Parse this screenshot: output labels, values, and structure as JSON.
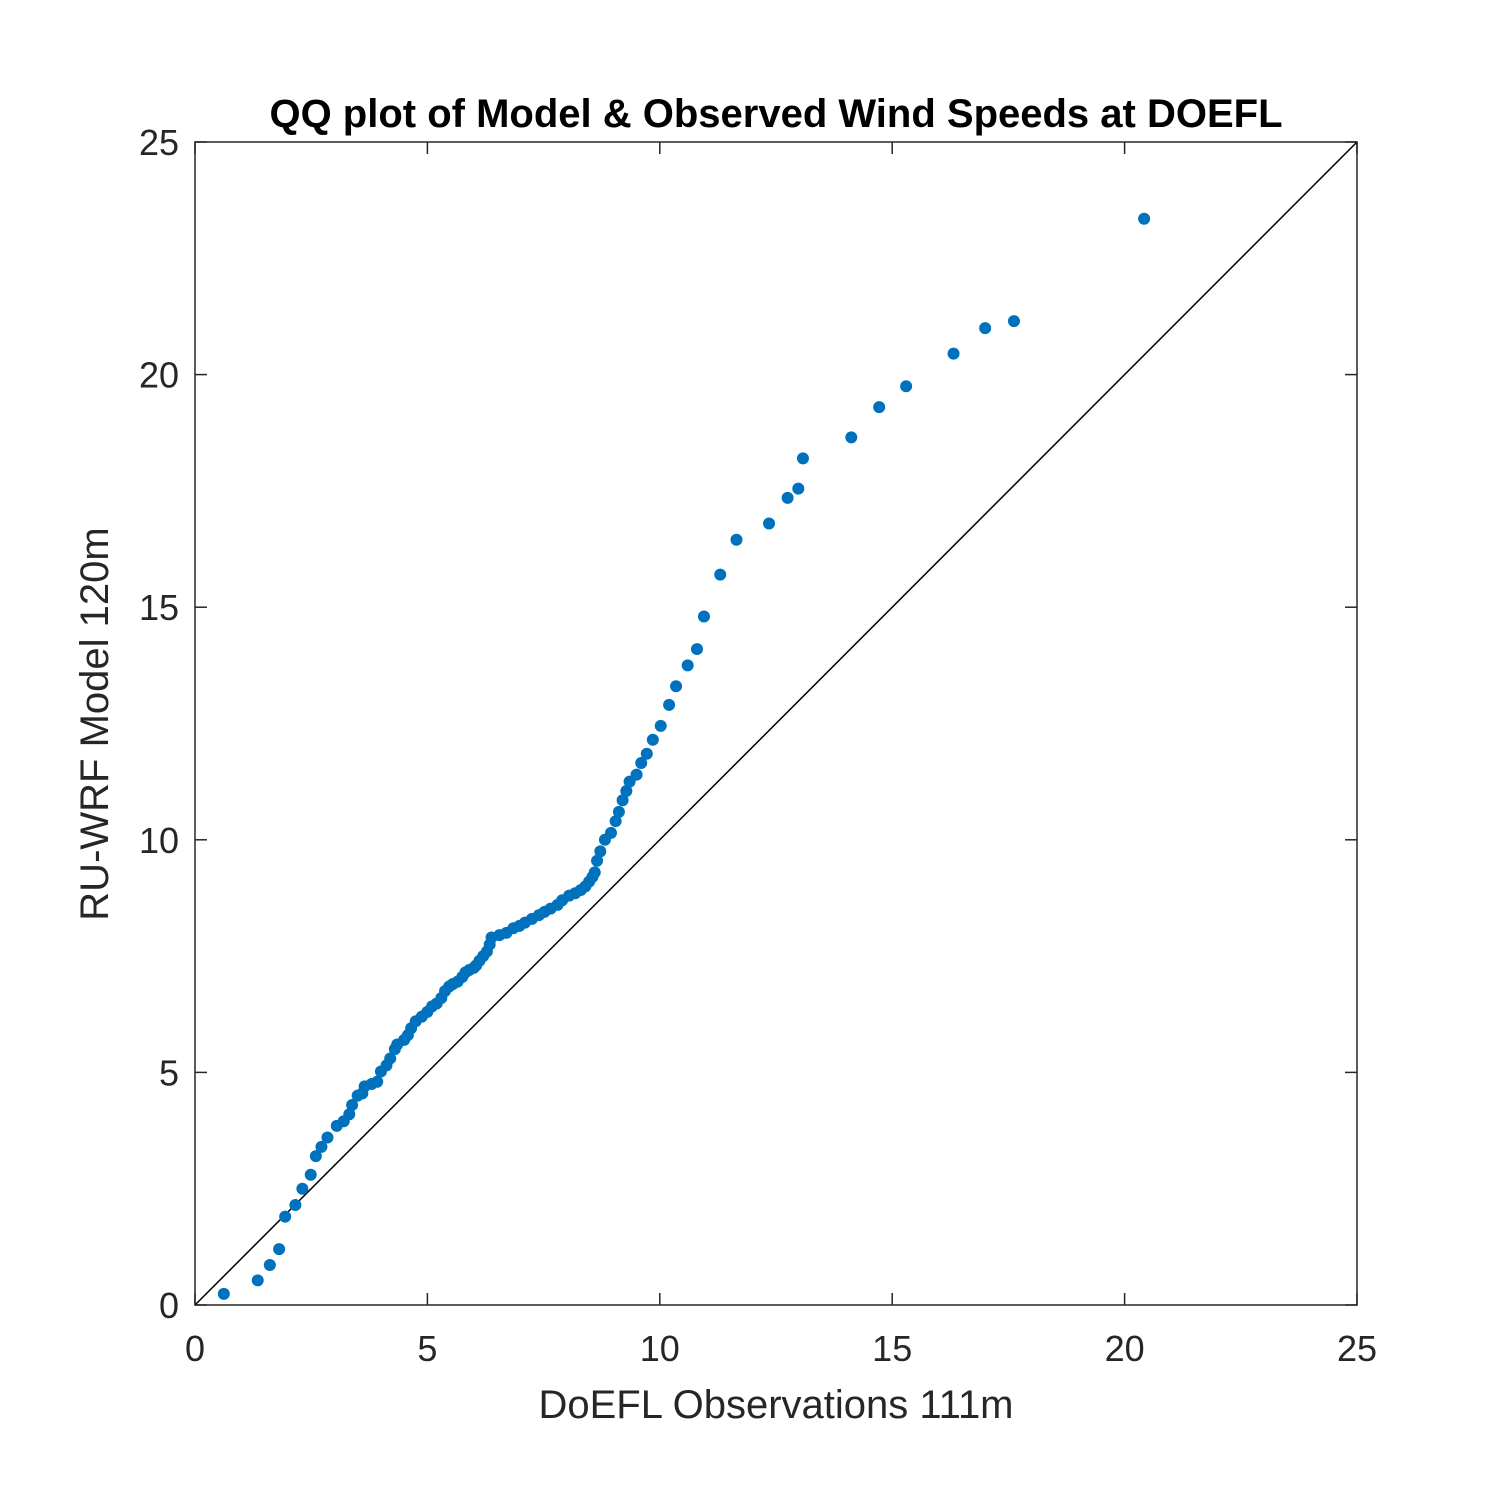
{
  "colors": {
    "points": "#0072BD",
    "axes": "#262626",
    "reference_line": "#000000",
    "background": "#ffffff"
  },
  "chart_data": {
    "type": "scatter",
    "title": "QQ plot of Model & Observed Wind Speeds at DOEFL",
    "xlabel": "DoEFL Observations 111m",
    "ylabel": "RU-WRF Model 120m",
    "xlim": [
      0,
      25
    ],
    "ylim": [
      0,
      25
    ],
    "xticks": [
      0,
      5,
      10,
      15,
      20,
      25
    ],
    "yticks": [
      0,
      5,
      10,
      15,
      20,
      25
    ],
    "xtick_labels": [
      "0",
      "5",
      "10",
      "15",
      "20",
      "25"
    ],
    "ytick_labels": [
      "0",
      "5",
      "10",
      "15",
      "20",
      "25"
    ],
    "grid": false,
    "box": true,
    "reference_line": {
      "x": [
        0,
        25
      ],
      "y": [
        0,
        25
      ]
    },
    "series": [
      {
        "points": [
          [
            0.62,
            0.24
          ],
          [
            1.35,
            0.53
          ],
          [
            1.61,
            0.86
          ],
          [
            1.81,
            1.2
          ],
          [
            1.94,
            1.9
          ],
          [
            2.16,
            2.15
          ],
          [
            2.31,
            2.5
          ],
          [
            2.49,
            2.8
          ],
          [
            2.6,
            3.2
          ],
          [
            2.72,
            3.4
          ],
          [
            2.85,
            3.6
          ],
          [
            3.05,
            3.85
          ],
          [
            3.2,
            3.95
          ],
          [
            3.32,
            4.1
          ],
          [
            3.38,
            4.3
          ],
          [
            3.5,
            4.5
          ],
          [
            3.6,
            4.55
          ],
          [
            3.65,
            4.7
          ],
          [
            3.8,
            4.75
          ],
          [
            3.92,
            4.8
          ],
          [
            4.0,
            5.02
          ],
          [
            4.12,
            5.15
          ],
          [
            4.2,
            5.3
          ],
          [
            4.3,
            5.5
          ],
          [
            4.35,
            5.6
          ],
          [
            4.5,
            5.7
          ],
          [
            4.58,
            5.8
          ],
          [
            4.65,
            5.95
          ],
          [
            4.75,
            6.1
          ],
          [
            4.88,
            6.2
          ],
          [
            5.0,
            6.3
          ],
          [
            5.1,
            6.42
          ],
          [
            5.2,
            6.48
          ],
          [
            5.3,
            6.6
          ],
          [
            5.38,
            6.75
          ],
          [
            5.47,
            6.85
          ],
          [
            5.55,
            6.9
          ],
          [
            5.65,
            6.95
          ],
          [
            5.75,
            7.05
          ],
          [
            5.82,
            7.15
          ],
          [
            5.9,
            7.2
          ],
          [
            6.0,
            7.25
          ],
          [
            6.05,
            7.3
          ],
          [
            6.12,
            7.4
          ],
          [
            6.2,
            7.5
          ],
          [
            6.28,
            7.6
          ],
          [
            6.34,
            7.75
          ],
          [
            6.38,
            7.9
          ],
          [
            6.55,
            7.95
          ],
          [
            6.7,
            8.0
          ],
          [
            6.85,
            8.1
          ],
          [
            6.98,
            8.15
          ],
          [
            7.1,
            8.22
          ],
          [
            7.25,
            8.3
          ],
          [
            7.4,
            8.38
          ],
          [
            7.52,
            8.45
          ],
          [
            7.65,
            8.52
          ],
          [
            7.8,
            8.6
          ],
          [
            7.9,
            8.7
          ],
          [
            8.05,
            8.8
          ],
          [
            8.18,
            8.85
          ],
          [
            8.3,
            8.92
          ],
          [
            8.4,
            9.0
          ],
          [
            8.48,
            9.1
          ],
          [
            8.55,
            9.2
          ],
          [
            8.6,
            9.3
          ],
          [
            8.65,
            9.55
          ],
          [
            8.72,
            9.75
          ],
          [
            8.82,
            10.0
          ],
          [
            8.95,
            10.15
          ],
          [
            9.05,
            10.4
          ],
          [
            9.12,
            10.6
          ],
          [
            9.2,
            10.85
          ],
          [
            9.28,
            11.05
          ],
          [
            9.35,
            11.25
          ],
          [
            9.5,
            11.4
          ],
          [
            9.6,
            11.65
          ],
          [
            9.72,
            11.85
          ],
          [
            9.85,
            12.15
          ],
          [
            10.02,
            12.45
          ],
          [
            10.2,
            12.9
          ],
          [
            10.35,
            13.3
          ],
          [
            10.6,
            13.75
          ],
          [
            10.8,
            14.1
          ],
          [
            10.95,
            14.8
          ],
          [
            11.3,
            15.7
          ],
          [
            11.65,
            16.45
          ],
          [
            12.35,
            16.8
          ],
          [
            12.75,
            17.35
          ],
          [
            12.98,
            17.55
          ],
          [
            13.08,
            18.2
          ],
          [
            14.12,
            18.65
          ],
          [
            14.72,
            19.3
          ],
          [
            15.3,
            19.75
          ],
          [
            16.32,
            20.45
          ],
          [
            17.0,
            21.0
          ],
          [
            17.62,
            21.15
          ],
          [
            20.42,
            23.35
          ]
        ]
      }
    ]
  }
}
